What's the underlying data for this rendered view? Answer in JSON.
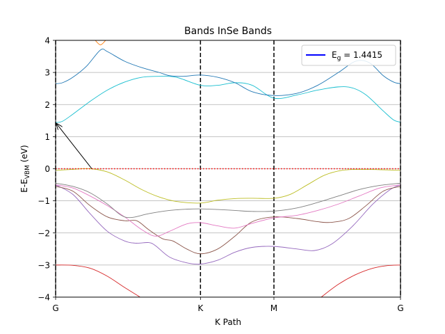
{
  "chart_data": {
    "type": "line",
    "title": "Bands InSe Bands",
    "xlabel": "K Path",
    "ylabel": {
      "base": "E-E",
      "sub": "VBM",
      "suffix": " (eV)"
    },
    "ylim": [
      -4,
      4
    ],
    "xlim": [
      0,
      1
    ],
    "yticks": [
      -4,
      -3,
      -2,
      -1,
      0,
      1,
      2,
      3,
      4
    ],
    "ytick_labels": [
      "−4",
      "−3",
      "−2",
      "−1",
      "0",
      "1",
      "2",
      "3",
      "4"
    ],
    "grid": "horizontal",
    "kpoints": [
      {
        "label": "G",
        "x": 0.0
      },
      {
        "label": "K",
        "x": 0.42
      },
      {
        "label": "M",
        "x": 0.633
      },
      {
        "label": "G",
        "x": 1.0
      }
    ],
    "legend": {
      "position": "top-right",
      "entries": [
        {
          "base": "E",
          "sub": "g",
          "suffix": " = 1.4415",
          "color": "#0000ff"
        }
      ]
    },
    "fermi_line": {
      "y": 0,
      "color": "#ff0000",
      "style": "dotted"
    },
    "arrow": {
      "from": [
        0.105,
        0.0
      ],
      "to": [
        0.0,
        1.44
      ]
    },
    "series": [
      {
        "color": "#d62728",
        "points": [
          [
            0,
            -3.0
          ],
          [
            0.05,
            -3.01
          ],
          [
            0.1,
            -3.1
          ],
          [
            0.15,
            -3.35
          ],
          [
            0.2,
            -3.7
          ],
          [
            0.245,
            -4.0
          ]
        ]
      },
      {
        "color": "#d62728",
        "points": [
          [
            0.77,
            -4.0
          ],
          [
            0.82,
            -3.6
          ],
          [
            0.87,
            -3.3
          ],
          [
            0.92,
            -3.1
          ],
          [
            0.96,
            -3.02
          ],
          [
            1.0,
            -3.0
          ]
        ]
      },
      {
        "color": "#9467bd",
        "points": [
          [
            0,
            -0.5
          ],
          [
            0.05,
            -0.8
          ],
          [
            0.1,
            -1.4
          ],
          [
            0.15,
            -1.95
          ],
          [
            0.2,
            -2.25
          ],
          [
            0.235,
            -2.32
          ],
          [
            0.27,
            -2.3
          ],
          [
            0.29,
            -2.4
          ],
          [
            0.33,
            -2.75
          ],
          [
            0.38,
            -2.93
          ],
          [
            0.42,
            -2.97
          ],
          [
            0.47,
            -2.85
          ],
          [
            0.52,
            -2.6
          ],
          [
            0.57,
            -2.45
          ],
          [
            0.633,
            -2.42
          ],
          [
            0.7,
            -2.5
          ],
          [
            0.75,
            -2.55
          ],
          [
            0.8,
            -2.35
          ],
          [
            0.86,
            -1.8
          ],
          [
            0.92,
            -1.1
          ],
          [
            0.97,
            -0.65
          ],
          [
            1.0,
            -0.5
          ]
        ]
      },
      {
        "color": "#8c564b",
        "points": [
          [
            0,
            -0.55
          ],
          [
            0.05,
            -0.7
          ],
          [
            0.1,
            -1.15
          ],
          [
            0.15,
            -1.5
          ],
          [
            0.2,
            -1.62
          ],
          [
            0.235,
            -1.62
          ],
          [
            0.27,
            -1.9
          ],
          [
            0.31,
            -2.18
          ],
          [
            0.34,
            -2.25
          ],
          [
            0.38,
            -2.5
          ],
          [
            0.42,
            -2.65
          ],
          [
            0.47,
            -2.5
          ],
          [
            0.52,
            -2.1
          ],
          [
            0.57,
            -1.65
          ],
          [
            0.633,
            -1.5
          ],
          [
            0.7,
            -1.55
          ],
          [
            0.76,
            -1.65
          ],
          [
            0.8,
            -1.67
          ],
          [
            0.85,
            -1.55
          ],
          [
            0.9,
            -1.15
          ],
          [
            0.95,
            -0.7
          ],
          [
            1.0,
            -0.55
          ]
        ]
      },
      {
        "color": "#e377c2",
        "points": [
          [
            0,
            -0.5
          ],
          [
            0.05,
            -0.6
          ],
          [
            0.1,
            -0.85
          ],
          [
            0.15,
            -1.15
          ],
          [
            0.2,
            -1.5
          ],
          [
            0.25,
            -1.9
          ],
          [
            0.29,
            -2.1
          ],
          [
            0.33,
            -1.95
          ],
          [
            0.38,
            -1.72
          ],
          [
            0.42,
            -1.68
          ],
          [
            0.47,
            -1.78
          ],
          [
            0.52,
            -1.85
          ],
          [
            0.57,
            -1.7
          ],
          [
            0.633,
            -1.53
          ],
          [
            0.7,
            -1.45
          ],
          [
            0.76,
            -1.3
          ],
          [
            0.82,
            -1.1
          ],
          [
            0.88,
            -0.85
          ],
          [
            0.94,
            -0.6
          ],
          [
            1.0,
            -0.5
          ]
        ]
      },
      {
        "color": "#7f7f7f",
        "points": [
          [
            0,
            -0.45
          ],
          [
            0.05,
            -0.55
          ],
          [
            0.1,
            -0.75
          ],
          [
            0.15,
            -1.1
          ],
          [
            0.19,
            -1.45
          ],
          [
            0.22,
            -1.52
          ],
          [
            0.27,
            -1.4
          ],
          [
            0.33,
            -1.3
          ],
          [
            0.38,
            -1.26
          ],
          [
            0.42,
            -1.25
          ],
          [
            0.47,
            -1.27
          ],
          [
            0.52,
            -1.3
          ],
          [
            0.57,
            -1.33
          ],
          [
            0.633,
            -1.32
          ],
          [
            0.7,
            -1.22
          ],
          [
            0.76,
            -1.05
          ],
          [
            0.82,
            -0.85
          ],
          [
            0.88,
            -0.65
          ],
          [
            0.94,
            -0.52
          ],
          [
            1.0,
            -0.45
          ]
        ]
      },
      {
        "color": "#bcbd22",
        "points": [
          [
            0,
            -0.05
          ],
          [
            0.05,
            -0.02
          ],
          [
            0.1,
            0.0
          ],
          [
            0.15,
            -0.1
          ],
          [
            0.2,
            -0.35
          ],
          [
            0.25,
            -0.65
          ],
          [
            0.3,
            -0.88
          ],
          [
            0.35,
            -1.02
          ],
          [
            0.42,
            -1.07
          ],
          [
            0.47,
            -0.98
          ],
          [
            0.52,
            -0.93
          ],
          [
            0.57,
            -0.92
          ],
          [
            0.633,
            -0.92
          ],
          [
            0.68,
            -0.8
          ],
          [
            0.73,
            -0.5
          ],
          [
            0.78,
            -0.2
          ],
          [
            0.83,
            -0.05
          ],
          [
            0.88,
            -0.02
          ],
          [
            0.94,
            -0.03
          ],
          [
            1.0,
            -0.05
          ]
        ]
      },
      {
        "color": "#17becf",
        "points": [
          [
            0,
            1.44
          ],
          [
            0.02,
            1.48
          ],
          [
            0.05,
            1.7
          ],
          [
            0.1,
            2.1
          ],
          [
            0.15,
            2.45
          ],
          [
            0.2,
            2.7
          ],
          [
            0.25,
            2.85
          ],
          [
            0.3,
            2.88
          ],
          [
            0.35,
            2.85
          ],
          [
            0.42,
            2.6
          ],
          [
            0.47,
            2.6
          ],
          [
            0.52,
            2.68
          ],
          [
            0.57,
            2.6
          ],
          [
            0.633,
            2.2
          ],
          [
            0.7,
            2.3
          ],
          [
            0.76,
            2.45
          ],
          [
            0.82,
            2.55
          ],
          [
            0.86,
            2.52
          ],
          [
            0.9,
            2.3
          ],
          [
            0.95,
            1.8
          ],
          [
            0.98,
            1.52
          ],
          [
            1.0,
            1.45
          ]
        ]
      },
      {
        "color": "#1f77b4",
        "points": [
          [
            0,
            2.65
          ],
          [
            0.02,
            2.68
          ],
          [
            0.05,
            2.85
          ],
          [
            0.09,
            3.2
          ],
          [
            0.13,
            3.7
          ],
          [
            0.15,
            3.65
          ],
          [
            0.2,
            3.35
          ],
          [
            0.25,
            3.15
          ],
          [
            0.3,
            3.0
          ],
          [
            0.33,
            2.9
          ],
          [
            0.37,
            2.88
          ],
          [
            0.42,
            2.92
          ],
          [
            0.47,
            2.85
          ],
          [
            0.52,
            2.68
          ],
          [
            0.57,
            2.4
          ],
          [
            0.633,
            2.28
          ],
          [
            0.7,
            2.35
          ],
          [
            0.76,
            2.6
          ],
          [
            0.82,
            3.0
          ],
          [
            0.87,
            3.35
          ],
          [
            0.91,
            3.3
          ],
          [
            0.95,
            2.9
          ],
          [
            0.98,
            2.7
          ],
          [
            1.0,
            2.65
          ]
        ]
      },
      {
        "color": "#ff7f0e",
        "points": [
          [
            0.115,
            4.0
          ],
          [
            0.13,
            3.86
          ],
          [
            0.145,
            4.0
          ]
        ]
      }
    ]
  }
}
